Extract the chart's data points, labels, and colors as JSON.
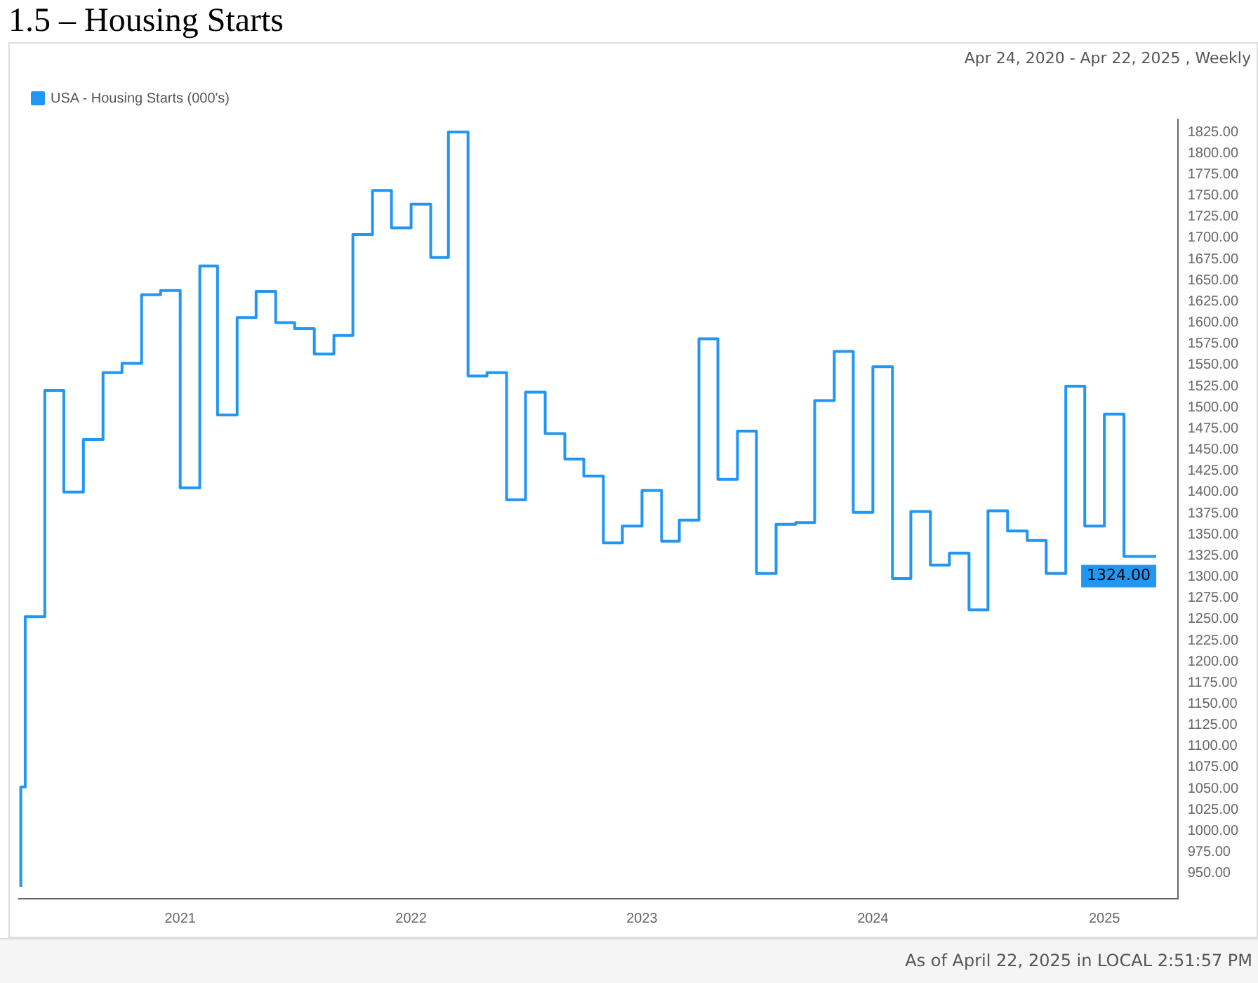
{
  "chart_data": {
    "type": "step",
    "title": "1.5 – Housing Starts",
    "subtitle": "Apr 24, 2020 - Apr 22, 2025 , Weekly",
    "x": [
      "2020-04-24",
      "2020-05",
      "2020-06",
      "2020-07",
      "2020-08",
      "2020-09",
      "2020-10",
      "2020-11",
      "2020-12",
      "2021-01",
      "2021-02",
      "2021-03",
      "2021-04",
      "2021-05",
      "2021-06",
      "2021-07",
      "2021-08",
      "2021-09",
      "2021-10",
      "2021-11",
      "2021-12",
      "2022-01",
      "2022-02",
      "2022-03",
      "2022-04",
      "2022-05",
      "2022-06",
      "2022-07",
      "2022-08",
      "2022-09",
      "2022-10",
      "2022-11",
      "2022-12",
      "2023-01",
      "2023-02",
      "2023-03",
      "2023-04",
      "2023-05",
      "2023-06",
      "2023-07",
      "2023-08",
      "2023-09",
      "2023-10",
      "2023-11",
      "2023-12",
      "2024-01",
      "2024-02",
      "2024-03",
      "2024-04",
      "2024-05",
      "2024-06",
      "2024-07",
      "2024-08",
      "2024-09",
      "2024-10",
      "2024-11",
      "2024-12",
      "2025-01",
      "2025-02",
      "2025-03",
      "2025-03-24"
    ],
    "series": [
      {
        "name": "USA - Housing Starts (000's)",
        "color": "#2196f3",
        "values": [
          934,
          1052,
          1253,
          1520,
          1400,
          1462,
          1541,
          1552,
          1633,
          1638,
          1405,
          1667,
          1491,
          1606,
          1637,
          1600,
          1593,
          1563,
          1585,
          1704,
          1756,
          1712,
          1740,
          1677,
          1825,
          1537,
          1541,
          1391,
          1518,
          1469,
          1439,
          1419,
          1340,
          1360,
          1402,
          1342,
          1367,
          1581,
          1415,
          1472,
          1304,
          1362,
          1364,
          1508,
          1566,
          1376,
          1548,
          1298,
          1377,
          1314,
          1328,
          1261,
          1378,
          1354,
          1343,
          1304,
          1525,
          1360,
          1492,
          1324,
          1324
        ]
      }
    ],
    "xlim": [
      "2020-04-20",
      "2025-04-27"
    ],
    "xticks": [
      {
        "value": "2021-01-01",
        "label": "2021"
      },
      {
        "value": "2022-01-01",
        "label": "2022"
      },
      {
        "value": "2023-01-01",
        "label": "2023"
      },
      {
        "value": "2024-01-01",
        "label": "2024"
      },
      {
        "value": "2025-01-01",
        "label": "2025"
      }
    ],
    "ylim": [
      920,
      1840
    ],
    "yticks": [
      {
        "value": 950,
        "label": "950.00"
      },
      {
        "value": 975,
        "label": "975.00"
      },
      {
        "value": 1000,
        "label": "1000.00"
      },
      {
        "value": 1025,
        "label": "1025.00"
      },
      {
        "value": 1050,
        "label": "1050.00"
      },
      {
        "value": 1075,
        "label": "1075.00"
      },
      {
        "value": 1100,
        "label": "1100.00"
      },
      {
        "value": 1125,
        "label": "1125.00"
      },
      {
        "value": 1150,
        "label": "1150.00"
      },
      {
        "value": 1175,
        "label": "1175.00"
      },
      {
        "value": 1200,
        "label": "1200.00"
      },
      {
        "value": 1225,
        "label": "1225.00"
      },
      {
        "value": 1250,
        "label": "1250.00"
      },
      {
        "value": 1275,
        "label": "1275.00"
      },
      {
        "value": 1300,
        "label": "1300.00"
      },
      {
        "value": 1325,
        "label": "1325.00"
      },
      {
        "value": 1350,
        "label": "1350.00"
      },
      {
        "value": 1375,
        "label": "1375.00"
      },
      {
        "value": 1400,
        "label": "1400.00"
      },
      {
        "value": 1425,
        "label": "1425.00"
      },
      {
        "value": 1450,
        "label": "1450.00"
      },
      {
        "value": 1475,
        "label": "1475.00"
      },
      {
        "value": 1500,
        "label": "1500.00"
      },
      {
        "value": 1525,
        "label": "1525.00"
      },
      {
        "value": 1550,
        "label": "1550.00"
      },
      {
        "value": 1575,
        "label": "1575.00"
      },
      {
        "value": 1600,
        "label": "1600.00"
      },
      {
        "value": 1625,
        "label": "1625.00"
      },
      {
        "value": 1650,
        "label": "1650.00"
      },
      {
        "value": 1675,
        "label": "1675.00"
      },
      {
        "value": 1700,
        "label": "1700.00"
      },
      {
        "value": 1725,
        "label": "1725.00"
      },
      {
        "value": 1750,
        "label": "1750.00"
      },
      {
        "value": 1775,
        "label": "1775.00"
      },
      {
        "value": 1800,
        "label": "1800.00"
      },
      {
        "value": 1825,
        "label": "1825.00"
      }
    ],
    "annotations": [
      {
        "text": "1324.00",
        "x": "2025-03-24",
        "y": 1324
      },
      "As of April 22, 2025 in LOCAL 2:51:57 PM"
    ],
    "legend": "top left",
    "grid": false,
    "marker": "none",
    "line_style": "solid"
  }
}
